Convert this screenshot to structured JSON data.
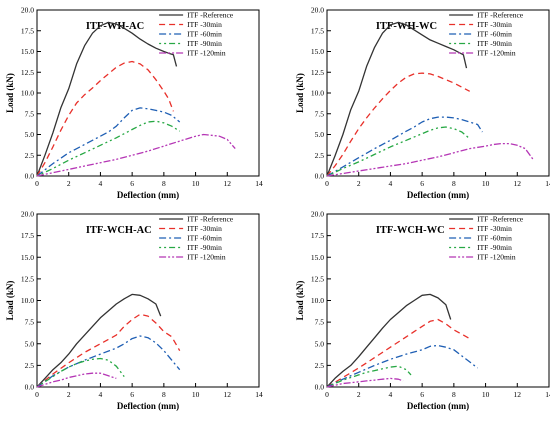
{
  "figure": {
    "legend_labels": [
      "ITF -Reference",
      "ITF -30min",
      "ITF -60min",
      "ITF -90min",
      "ITF -120min"
    ],
    "series_colors": [
      "#333333",
      "#e8302a",
      "#1f5fb4",
      "#27a844",
      "#b536b5"
    ],
    "series_dashes": [
      "none",
      "6,4",
      "7,3,2,3",
      "2,3,2,3,6,3",
      "7,2,2,2,2,2"
    ]
  },
  "chart_data": [
    {
      "type": "line",
      "title": "ITF-WH-AC",
      "xlabel": "Deflection (mm)",
      "ylabel": "Load (kN)",
      "xlim": [
        0,
        14
      ],
      "ylim": [
        0,
        20
      ],
      "xticks": [
        0,
        2,
        4,
        6,
        8,
        10,
        12,
        14
      ],
      "yticks": [
        0.0,
        2.5,
        5.0,
        7.5,
        10.0,
        12.5,
        15.0,
        17.5,
        20.0
      ],
      "legend_position": "top-right",
      "grid": false,
      "series": [
        {
          "name": "ITF -Reference",
          "x": [
            0,
            0.5,
            1,
            1.5,
            2,
            2.5,
            3,
            3.5,
            4,
            4.5,
            5,
            5.5,
            6,
            6.5,
            7,
            7.5,
            8,
            8.3,
            8.6,
            8.8
          ],
          "y": [
            0,
            2.5,
            5.2,
            8.2,
            10.5,
            13.5,
            15.7,
            17.2,
            18.1,
            18.5,
            18.3,
            17.8,
            17.2,
            16.5,
            15.9,
            15.4,
            15.0,
            14.8,
            14.6,
            13.2
          ]
        },
        {
          "name": "ITF -30min",
          "x": [
            0,
            0.5,
            1,
            1.5,
            2,
            2.5,
            3,
            3.5,
            4,
            4.5,
            5,
            5.5,
            6,
            6.5,
            7,
            7.5,
            8,
            8.3,
            8.6
          ],
          "y": [
            0,
            1.6,
            3.5,
            5.5,
            7.3,
            8.8,
            9.8,
            10.6,
            11.5,
            12.3,
            13.1,
            13.6,
            13.8,
            13.5,
            12.8,
            11.6,
            10.2,
            9.3,
            7.8
          ]
        },
        {
          "name": "ITF -60min",
          "x": [
            0,
            1,
            2,
            3,
            4,
            4.5,
            5,
            5.5,
            6,
            6.5,
            7,
            7.5,
            8,
            8.5,
            9
          ],
          "y": [
            0,
            1.5,
            2.8,
            3.8,
            4.8,
            5.3,
            6.0,
            7.0,
            7.9,
            8.2,
            8.1,
            7.9,
            7.7,
            7.3,
            6.5
          ]
        },
        {
          "name": "ITF -90min",
          "x": [
            0,
            1,
            2,
            3,
            4,
            5,
            5.5,
            6,
            6.5,
            7,
            7.5,
            8,
            8.5,
            9
          ],
          "y": [
            0,
            0.9,
            1.9,
            2.8,
            3.7,
            4.6,
            5.1,
            5.6,
            6.1,
            6.5,
            6.6,
            6.4,
            6.0,
            5.4
          ]
        },
        {
          "name": "ITF -120min",
          "x": [
            0,
            1,
            2,
            3,
            4,
            5,
            6,
            7,
            8,
            9,
            10,
            10.5,
            11,
            11.5,
            12,
            12.5
          ],
          "y": [
            0,
            0.4,
            0.8,
            1.2,
            1.6,
            2.0,
            2.5,
            3.0,
            3.6,
            4.2,
            4.8,
            5.0,
            4.9,
            4.8,
            4.4,
            3.3
          ]
        }
      ]
    },
    {
      "type": "line",
      "title": "ITF-WH-WC",
      "xlabel": "Deflection (mm)",
      "ylabel": "Load (kN)",
      "xlim": [
        0,
        14
      ],
      "ylim": [
        0,
        20
      ],
      "xticks": [
        0,
        2,
        4,
        6,
        8,
        10,
        12,
        14
      ],
      "yticks": [
        0.0,
        2.5,
        5.0,
        7.5,
        10.0,
        12.5,
        15.0,
        17.5,
        20.0
      ],
      "legend_position": "top-right",
      "grid": false,
      "series": [
        {
          "name": "ITF -Reference",
          "x": [
            0,
            0.5,
            1,
            1.5,
            2,
            2.5,
            3,
            3.5,
            4,
            4.5,
            5,
            5.5,
            6,
            6.5,
            7,
            7.5,
            8,
            8.3,
            8.6,
            8.8
          ],
          "y": [
            0,
            2.4,
            5.0,
            8.0,
            10.2,
            13.2,
            15.5,
            17.2,
            18.2,
            18.5,
            18.2,
            17.6,
            17.0,
            16.4,
            16.0,
            15.6,
            15.2,
            14.9,
            14.6,
            13.0
          ]
        },
        {
          "name": "ITF -30min",
          "x": [
            0,
            0.5,
            1,
            1.5,
            2,
            2.5,
            3,
            3.5,
            4,
            4.5,
            5,
            5.5,
            6,
            6.5,
            7,
            7.5,
            8,
            8.5,
            9
          ],
          "y": [
            0,
            1.2,
            2.6,
            4.2,
            5.7,
            7.0,
            8.2,
            9.3,
            10.3,
            11.2,
            11.9,
            12.3,
            12.4,
            12.3,
            12.0,
            11.6,
            11.2,
            10.7,
            10.2
          ]
        },
        {
          "name": "ITF -60min",
          "x": [
            0,
            1,
            2,
            3,
            4,
            5,
            5.5,
            6,
            6.5,
            7,
            7.5,
            8,
            8.5,
            9,
            9.5,
            9.8
          ],
          "y": [
            0,
            1.1,
            2.2,
            3.3,
            4.3,
            5.4,
            5.9,
            6.5,
            6.9,
            7.1,
            7.1,
            7.0,
            6.8,
            6.5,
            6.2,
            5.3
          ]
        },
        {
          "name": "ITF -90min",
          "x": [
            0,
            1,
            2,
            3,
            4,
            5,
            6,
            6.5,
            7,
            7.5,
            8,
            8.5,
            9
          ],
          "y": [
            0,
            0.9,
            1.7,
            2.6,
            3.5,
            4.3,
            5.1,
            5.5,
            5.8,
            5.9,
            5.7,
            5.3,
            4.5
          ]
        },
        {
          "name": "ITF -120min",
          "x": [
            0,
            1,
            2,
            3,
            4,
            5,
            6,
            7,
            8,
            9,
            10,
            10.5,
            11,
            11.5,
            12,
            12.5,
            13
          ],
          "y": [
            0,
            0.3,
            0.6,
            0.9,
            1.2,
            1.5,
            1.9,
            2.3,
            2.8,
            3.3,
            3.6,
            3.8,
            3.9,
            3.9,
            3.7,
            3.3,
            2.0
          ]
        }
      ]
    },
    {
      "type": "line",
      "title": "ITF-WCH-AC",
      "xlabel": "Deflection (mm)",
      "ylabel": "Load (kN)",
      "xlim": [
        0,
        14
      ],
      "ylim": [
        0,
        20
      ],
      "xticks": [
        0,
        2,
        4,
        6,
        8,
        10,
        12,
        14
      ],
      "yticks": [
        0.0,
        2.5,
        5.0,
        7.5,
        10.0,
        12.5,
        15.0,
        17.5,
        20.0
      ],
      "legend_position": "top-right",
      "grid": false,
      "series": [
        {
          "name": "ITF -Reference",
          "x": [
            0,
            0.5,
            1,
            1.5,
            2,
            2.5,
            3,
            3.5,
            4,
            4.5,
            5,
            5.5,
            6,
            6.5,
            7,
            7.5,
            7.8
          ],
          "y": [
            0,
            1.0,
            2.0,
            2.8,
            3.8,
            5.0,
            6.0,
            7.0,
            8.0,
            8.8,
            9.6,
            10.2,
            10.7,
            10.6,
            10.2,
            9.6,
            8.2
          ]
        },
        {
          "name": "ITF -30min",
          "x": [
            0,
            1,
            2,
            3,
            4,
            5,
            5.5,
            6,
            6.5,
            7,
            7.5,
            8,
            8.5,
            9
          ],
          "y": [
            0,
            1.5,
            2.8,
            4.0,
            5.0,
            6.0,
            7.0,
            7.8,
            8.4,
            8.2,
            7.4,
            6.4,
            5.8,
            4.2
          ]
        },
        {
          "name": "ITF -60min",
          "x": [
            0,
            1,
            2,
            3,
            4,
            5,
            5.5,
            6,
            6.5,
            7,
            7.5,
            8,
            8.5,
            9
          ],
          "y": [
            0,
            1.3,
            2.3,
            3.1,
            3.8,
            4.5,
            5.0,
            5.6,
            5.9,
            5.7,
            5.1,
            4.2,
            3.1,
            2.0
          ]
        },
        {
          "name": "ITF -90min",
          "x": [
            0,
            0.5,
            1,
            1.5,
            2,
            2.5,
            3,
            3.5,
            4,
            4.5,
            5,
            5.5
          ],
          "y": [
            0,
            0.6,
            1.2,
            1.8,
            2.3,
            2.7,
            3.0,
            3.2,
            3.3,
            3.1,
            2.4,
            1.2
          ]
        },
        {
          "name": "ITF -120min",
          "x": [
            0,
            0.5,
            1,
            1.5,
            2,
            2.5,
            3,
            3.5,
            4,
            4.5,
            5
          ],
          "y": [
            0,
            0.3,
            0.6,
            0.8,
            1.1,
            1.3,
            1.5,
            1.6,
            1.6,
            1.3,
            1.0
          ]
        }
      ]
    },
    {
      "type": "line",
      "title": "ITF-WCH-WC",
      "xlabel": "Deflection (mm)",
      "ylabel": "Load (kN)",
      "xlim": [
        0,
        14
      ],
      "ylim": [
        0,
        20
      ],
      "xticks": [
        0,
        2,
        4,
        6,
        8,
        10,
        12,
        14
      ],
      "yticks": [
        0.0,
        2.5,
        5.0,
        7.5,
        10.0,
        12.5,
        15.0,
        17.5,
        20.0
      ],
      "legend_position": "top-right",
      "grid": false,
      "series": [
        {
          "name": "ITF -Reference",
          "x": [
            0,
            0.5,
            1,
            1.5,
            2,
            2.5,
            3,
            3.5,
            4,
            4.5,
            5,
            5.5,
            6,
            6.5,
            7,
            7.5,
            7.8
          ],
          "y": [
            0,
            1.0,
            1.8,
            2.5,
            3.5,
            4.6,
            5.7,
            6.8,
            7.8,
            8.6,
            9.4,
            10.0,
            10.6,
            10.7,
            10.3,
            9.5,
            7.8
          ]
        },
        {
          "name": "ITF -30min",
          "x": [
            0,
            1,
            2,
            3,
            4,
            5,
            5.5,
            6,
            6.5,
            7,
            7.5,
            8,
            8.5,
            9
          ],
          "y": [
            0,
            1.1,
            2.2,
            3.4,
            4.6,
            5.8,
            6.4,
            7.0,
            7.6,
            7.8,
            7.3,
            6.6,
            6.1,
            5.6
          ]
        },
        {
          "name": "ITF -60min",
          "x": [
            0,
            1,
            2,
            3,
            4,
            5,
            6,
            6.5,
            7,
            7.5,
            8,
            8.5,
            9,
            9.5
          ],
          "y": [
            0,
            0.9,
            1.7,
            2.5,
            3.2,
            3.8,
            4.3,
            4.7,
            4.8,
            4.6,
            4.3,
            3.6,
            2.9,
            2.2
          ]
        },
        {
          "name": "ITF -90min",
          "x": [
            0,
            0.5,
            1,
            1.5,
            2,
            2.5,
            3,
            3.5,
            4,
            4.5,
            5,
            5.3
          ],
          "y": [
            0,
            0.4,
            0.8,
            1.1,
            1.4,
            1.7,
            1.9,
            2.1,
            2.3,
            2.4,
            2.0,
            1.4
          ]
        },
        {
          "name": "ITF -120min",
          "x": [
            0,
            0.5,
            1,
            1.5,
            2,
            2.5,
            3,
            3.5,
            4,
            4.5,
            4.8
          ],
          "y": [
            0,
            0.2,
            0.4,
            0.5,
            0.6,
            0.7,
            0.8,
            0.9,
            1.0,
            0.9,
            0.7
          ]
        }
      ]
    }
  ]
}
